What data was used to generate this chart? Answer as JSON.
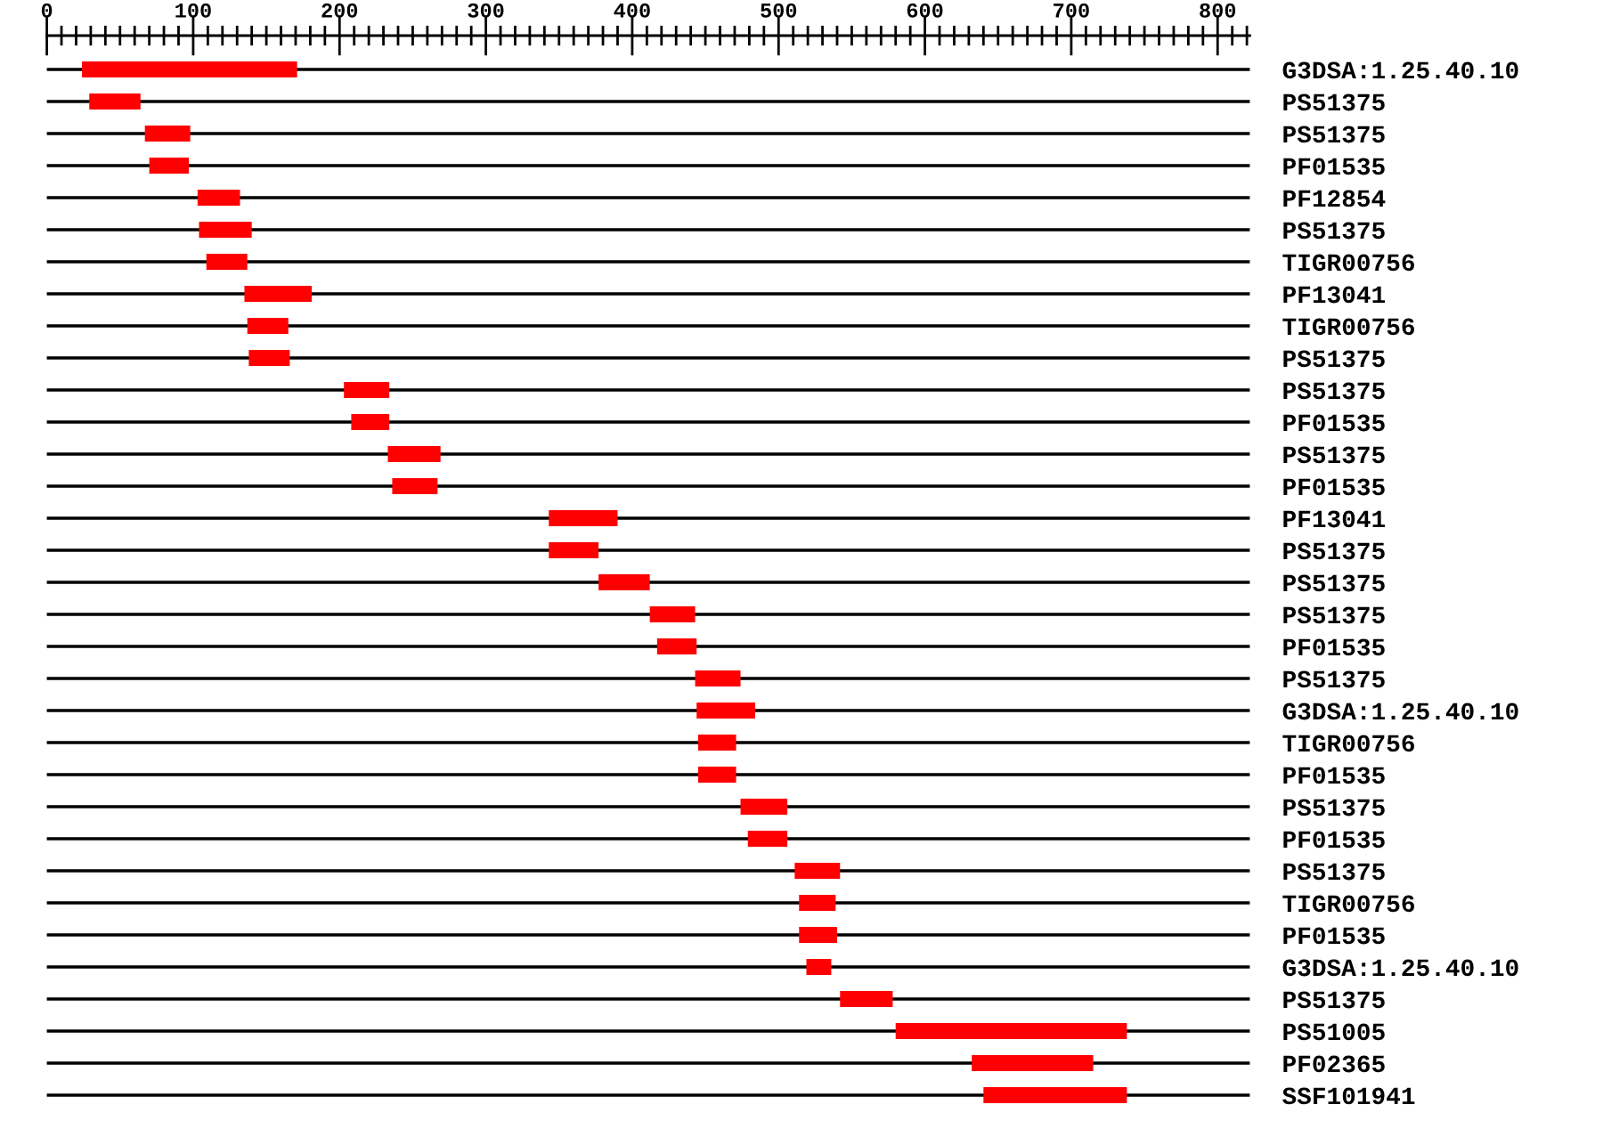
{
  "chart_data": {
    "type": "bar",
    "orientation": "horizontal",
    "color": "#ff0000",
    "grid": "y",
    "categories": [
      "G3DSA:1.25.40.10",
      "PS51375",
      "PS51375",
      "PF01535",
      "PF12854",
      "PS51375",
      "TIGR00756",
      "PF13041",
      "TIGR00756",
      "PS51375",
      "PS51375",
      "PF01535",
      "PS51375",
      "PF01535",
      "PF13041",
      "PS51375",
      "PS51375",
      "PS51375",
      "PF01535",
      "PS51375",
      "G3DSA:1.25.40.10",
      "TIGR00756",
      "PF01535",
      "PS51375",
      "PF01535",
      "PS51375",
      "TIGR00756",
      "PF01535",
      "G3DSA:1.25.40.10",
      "PS51375",
      "PS51005",
      "PF02365",
      "SSF101941"
    ],
    "base": [
      24,
      29,
      67,
      70,
      103,
      104,
      109,
      135,
      137,
      138,
      203,
      208,
      233,
      236,
      343,
      343,
      377,
      412,
      417,
      443,
      444,
      445,
      445,
      474,
      479,
      511,
      514,
      514,
      519,
      542,
      580,
      632,
      640
    ],
    "values": [
      147,
      35,
      31,
      27,
      29,
      36,
      28,
      46,
      28,
      28,
      31,
      26,
      36,
      31,
      47,
      34,
      35,
      31,
      27,
      31,
      40,
      26,
      26,
      32,
      27,
      31,
      25,
      26,
      17,
      36,
      158,
      83,
      98
    ],
    "xlim": [
      0,
      822
    ],
    "xticks": [
      0,
      {
        "value": 10,
        "label": null
      },
      {
        "value": 20,
        "label": null
      },
      {
        "value": 30,
        "label": null
      },
      {
        "value": 40,
        "label": null
      },
      {
        "value": 50,
        "label": null
      },
      {
        "value": 60,
        "label": null
      },
      {
        "value": 70,
        "label": null
      },
      {
        "value": 80,
        "label": null
      },
      {
        "value": 90,
        "label": null
      },
      100,
      {
        "value": 110,
        "label": null
      },
      {
        "value": 120,
        "label": null
      },
      {
        "value": 130,
        "label": null
      },
      {
        "value": 140,
        "label": null
      },
      {
        "value": 150,
        "label": null
      },
      {
        "value": 160,
        "label": null
      },
      {
        "value": 170,
        "label": null
      },
      {
        "value": 180,
        "label": null
      },
      {
        "value": 190,
        "label": null
      },
      200,
      {
        "value": 210,
        "label": null
      },
      {
        "value": 220,
        "label": null
      },
      {
        "value": 230,
        "label": null
      },
      {
        "value": 240,
        "label": null
      },
      {
        "value": 250,
        "label": null
      },
      {
        "value": 260,
        "label": null
      },
      {
        "value": 270,
        "label": null
      },
      {
        "value": 280,
        "label": null
      },
      {
        "value": 290,
        "label": null
      },
      300,
      {
        "value": 310,
        "label": null
      },
      {
        "value": 320,
        "label": null
      },
      {
        "value": 330,
        "label": null
      },
      {
        "value": 340,
        "label": null
      },
      {
        "value": 350,
        "label": null
      },
      {
        "value": 360,
        "label": null
      },
      {
        "value": 370,
        "label": null
      },
      {
        "value": 380,
        "label": null
      },
      {
        "value": 390,
        "label": null
      },
      400,
      {
        "value": 410,
        "label": null
      },
      {
        "value": 420,
        "label": null
      },
      {
        "value": 430,
        "label": null
      },
      {
        "value": 440,
        "label": null
      },
      {
        "value": 450,
        "label": null
      },
      {
        "value": 460,
        "label": null
      },
      {
        "value": 470,
        "label": null
      },
      {
        "value": 480,
        "label": null
      },
      {
        "value": 490,
        "label": null
      },
      500,
      {
        "value": 510,
        "label": null
      },
      {
        "value": 520,
        "label": null
      },
      {
        "value": 530,
        "label": null
      },
      {
        "value": 540,
        "label": null
      },
      {
        "value": 550,
        "label": null
      },
      {
        "value": 560,
        "label": null
      },
      {
        "value": 570,
        "label": null
      },
      {
        "value": 580,
        "label": null
      },
      {
        "value": 590,
        "label": null
      },
      600,
      {
        "value": 610,
        "label": null
      },
      {
        "value": 620,
        "label": null
      },
      {
        "value": 630,
        "label": null
      },
      {
        "value": 640,
        "label": null
      },
      {
        "value": 650,
        "label": null
      },
      {
        "value": 660,
        "label": null
      },
      {
        "value": 670,
        "label": null
      },
      {
        "value": 680,
        "label": null
      },
      {
        "value": 690,
        "label": null
      },
      700,
      {
        "value": 710,
        "label": null
      },
      {
        "value": 720,
        "label": null
      },
      {
        "value": 730,
        "label": null
      },
      {
        "value": 740,
        "label": null
      },
      {
        "value": 750,
        "label": null
      },
      {
        "value": 760,
        "label": null
      },
      {
        "value": 770,
        "label": null
      },
      {
        "value": 780,
        "label": null
      },
      {
        "value": 790,
        "label": null
      },
      800,
      {
        "value": 810,
        "label": null
      },
      {
        "value": 820,
        "label": null
      }
    ]
  }
}
